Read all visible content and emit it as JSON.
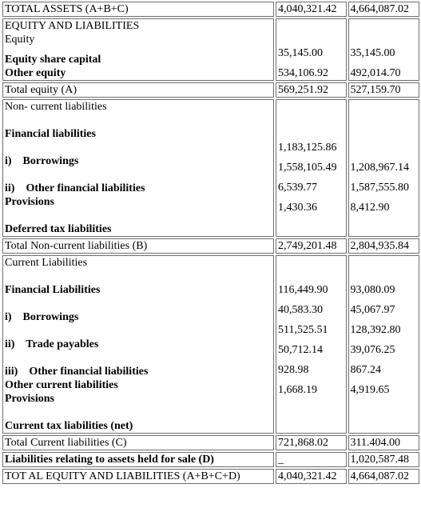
{
  "rows": {
    "total_assets": {
      "label": "TOTAL ASSETS (A+B+C)",
      "v1": "4,040,321.42",
      "v2": "4,664,087.02"
    },
    "equity_block": {
      "heading": "EQUITY AND LIABILITIES",
      "sub": "Equity",
      "items": [
        {
          "label": "Equity share capital",
          "v1": "35,145.00",
          "v2": "35,145.00"
        },
        {
          "label": "Other equity",
          "v1": "534,106.92",
          "v2": "492,014.70"
        }
      ]
    },
    "total_equity": {
      "label": "Total equity (A)",
      "v1": "569,251.92",
      "v2": "527,159.70"
    },
    "noncurrent_block": {
      "heading": "Non- current liabilities",
      "fin_heading": "Financial liabilities",
      "borrowings": {
        "label": "i)    Borrowings",
        "v1": "1,183,125.86",
        "v2": ""
      },
      "other_fin": {
        "label": "ii)    Other financial liabilities",
        "v1": "1,558,105.49",
        "v2": "1,208,967.14"
      },
      "provisions": {
        "label": "Provisions",
        "v1": "6,539.77",
        "v2": "1,587,555.80"
      },
      "deferred": {
        "label": "Deferred tax liabilities",
        "v1": "1,430.36",
        "v2": "8,412.90"
      }
    },
    "total_noncurrent": {
      "label": "Total Non-current liabilities (B)",
      "v1": "2,749,201.48",
      "v2": "2,804,935.84"
    },
    "current_block": {
      "heading": "Current Liabilities",
      "fin_heading": "Financial Liabilities",
      "fin_v1": "116,449.90",
      "fin_v2": "93,080.09",
      "borrowings": {
        "label": "i)    Borrowings",
        "v1": "40,583.30",
        "v2": "45,067.97"
      },
      "trade": {
        "label": "ii)    Trade payables",
        "v1": "511,525.51",
        "v2": "128,392.80"
      },
      "other_fin": {
        "label": "iii)    Other financial liabilities",
        "v1": "50,712.14",
        "v2": "39,076.25"
      },
      "other_current": {
        "label": "Other current liabilities"
      },
      "provisions": {
        "label": "Provisions",
        "v1": "928.98",
        "v2": "867.24"
      },
      "current_tax": {
        "label": "Current tax liabilities (net)",
        "v1": "1,668.19",
        "v2": "4,919.65"
      }
    },
    "total_current": {
      "label": "Total Current liabilities (C)",
      "v1": "721,868.02",
      "v2": "311.404.00"
    },
    "held_for_sale": {
      "label": "Liabilities relating to assets held for sale (D)",
      "v1": "_",
      "v2": "1,020,587.48"
    },
    "total_eq_liab": {
      "label": "TOT AL EQUITY AND LIABILITIES (A+B+C+D)",
      "v1": "4,040,321.42",
      "v2": "4,664,087.02"
    }
  }
}
